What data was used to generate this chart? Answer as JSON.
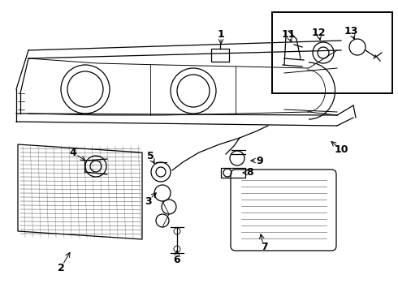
{
  "bg_color": "#ffffff",
  "line_color": "#000000",
  "fig_width": 4.9,
  "fig_height": 3.6,
  "dpi": 100,
  "label_fontsize": 9,
  "label_fontweight": "bold",
  "labels": {
    "1": [
      272,
      42,
      272,
      58
    ],
    "2": [
      75,
      330,
      88,
      308
    ],
    "3": [
      182,
      248,
      195,
      235
    ],
    "4": [
      90,
      188,
      108,
      200
    ],
    "5": [
      185,
      192,
      192,
      205
    ],
    "6": [
      218,
      320,
      218,
      305
    ],
    "7": [
      325,
      305,
      320,
      285
    ],
    "8": [
      308,
      213,
      295,
      213
    ],
    "9": [
      320,
      198,
      305,
      198
    ],
    "10": [
      420,
      185,
      405,
      172
    ],
    "11": [
      355,
      42,
      360,
      55
    ],
    "12": [
      392,
      40,
      395,
      53
    ],
    "13": [
      432,
      38,
      438,
      52
    ]
  }
}
